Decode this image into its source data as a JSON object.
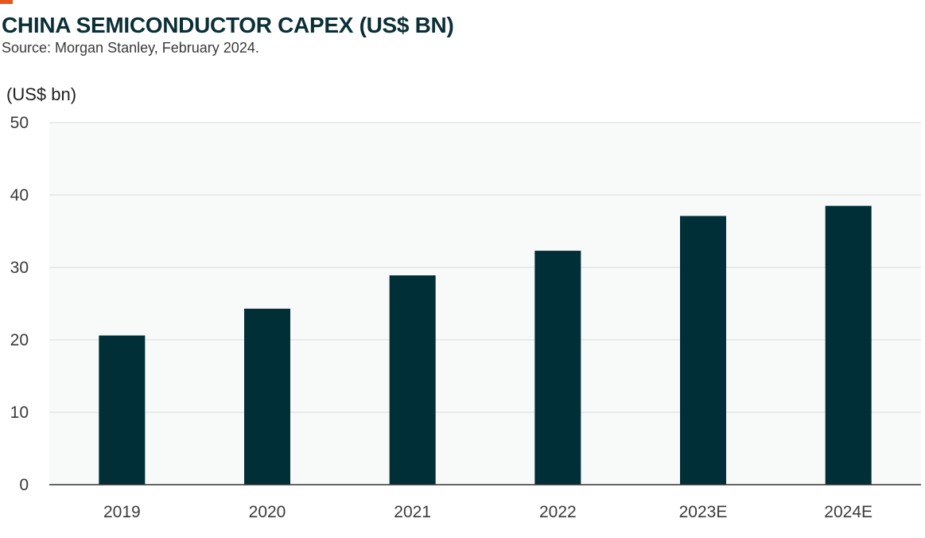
{
  "header": {
    "title": "CHINA SEMICONDUCTOR CAPEX (US$ BN)",
    "source": "Source: Morgan Stanley, February 2024."
  },
  "colors": {
    "accent": "#e8561c",
    "bar": "#002f38",
    "plot_background": "#f8f9f9",
    "gridline": "#dcdcdc",
    "axis": "#333333"
  },
  "chart_data": {
    "type": "bar",
    "title": "CHINA SEMICONDUCTOR CAPEX (US$ BN)",
    "subtitle": "Source: Morgan Stanley, February 2024.",
    "ylabel": "(US$ bn)",
    "xlabel": "",
    "categories": [
      "2019",
      "2020",
      "2021",
      "2022",
      "2023E",
      "2024E"
    ],
    "values": [
      20.6,
      24.3,
      28.9,
      32.3,
      37.1,
      38.5
    ],
    "ylim": [
      0,
      50
    ],
    "yticks": [
      0,
      10,
      20,
      30,
      40,
      50
    ],
    "grid": true,
    "legend": "none"
  }
}
